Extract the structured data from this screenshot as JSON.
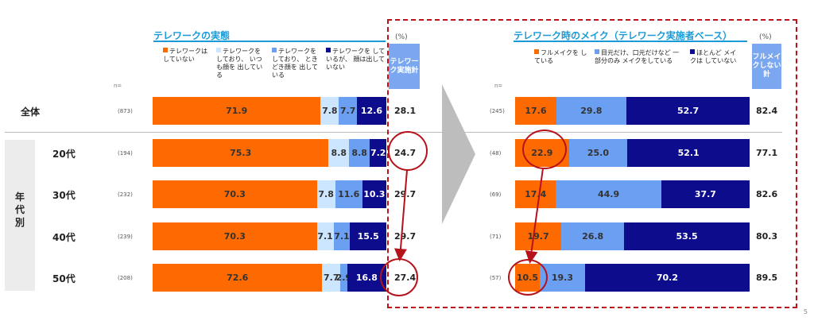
{
  "page_number": "5",
  "left": {
    "title": "テレワークの実態",
    "percent_label": "(%)",
    "n_label": "n=",
    "total_header": "テレワーク実施計",
    "legend": [
      {
        "label": "テレワークは していない",
        "color": "#ff6a00"
      },
      {
        "label": "テレワークを しており、 いつも顔を 出している",
        "color": "#cce6ff"
      },
      {
        "label": "テレワークを しており、 ときどき顔を 出している",
        "color": "#6a9ff2"
      },
      {
        "label": "テレワークを しているが、 顔は出していない",
        "color": "#0c0c8c"
      }
    ]
  },
  "right": {
    "title": "テレワーク時のメイク（テレワーク実施者ベース）",
    "percent_label": "(%)",
    "n_label": "n=",
    "total_header": "フルメイクしない計",
    "legend": [
      {
        "label": "フルメイクを している",
        "color": "#ff6a00"
      },
      {
        "label": "目元だけ、口元だけなど 一部分のみ メイクをしている",
        "color": "#6a9ff2"
      },
      {
        "label": "ほとんど メイクは していない",
        "color": "#0c0c8c"
      }
    ]
  },
  "group_label": "年代別",
  "chart_data": [
    {
      "type": "bar",
      "stacked": "horizontal-100%",
      "title": "テレワークの実態",
      "categories": [
        "全体",
        "20代",
        "30代",
        "40代",
        "50代"
      ],
      "n": [
        "(873)",
        "(194)",
        "(232)",
        "(239)",
        "(208)"
      ],
      "series": [
        {
          "name": "テレワークは していない",
          "color": "#ff6a00",
          "values": [
            71.9,
            75.3,
            70.3,
            70.3,
            72.6
          ]
        },
        {
          "name": "テレワークを しており、 いつも顔を 出している",
          "color": "#cce6ff",
          "values": [
            7.8,
            8.8,
            7.8,
            7.1,
            7.7
          ]
        },
        {
          "name": "テレワークを しており、 ときどき顔を 出している",
          "color": "#6a9ff2",
          "values": [
            7.7,
            8.8,
            11.6,
            7.1,
            2.9
          ]
        },
        {
          "name": "テレワークを しているが、 顔は出していない",
          "color": "#0c0c8c",
          "values": [
            12.6,
            7.2,
            10.3,
            15.5,
            16.8
          ]
        }
      ],
      "totals_label": "テレワーク実施計",
      "totals": [
        "28.1",
        "24.7",
        "29.7",
        "29.7",
        "27.4"
      ],
      "xlim": [
        0,
        100
      ]
    },
    {
      "type": "bar",
      "stacked": "horizontal-100%",
      "title": "テレワーク時のメイク（テレワーク実施者ベース）",
      "categories": [
        "全体",
        "20代",
        "30代",
        "40代",
        "50代"
      ],
      "n": [
        "(245)",
        "(48)",
        "(69)",
        "(71)",
        "(57)"
      ],
      "series": [
        {
          "name": "フルメイクを している",
          "color": "#ff6a00",
          "values": [
            17.6,
            22.9,
            17.4,
            19.7,
            10.5
          ]
        },
        {
          "name": "目元だけ、口元だけなど 一部分のみ メイクをしている",
          "color": "#6a9ff2",
          "values": [
            29.8,
            25.0,
            44.9,
            26.8,
            19.3
          ]
        },
        {
          "name": "ほとんど メイクは していない",
          "color": "#0c0c8c",
          "values": [
            52.7,
            52.1,
            37.7,
            53.5,
            70.2
          ]
        }
      ],
      "totals_label": "フルメイクしない計",
      "totals": [
        "82.4",
        "77.1",
        "82.6",
        "80.3",
        "89.5"
      ],
      "xlim": [
        0,
        100
      ]
    }
  ]
}
